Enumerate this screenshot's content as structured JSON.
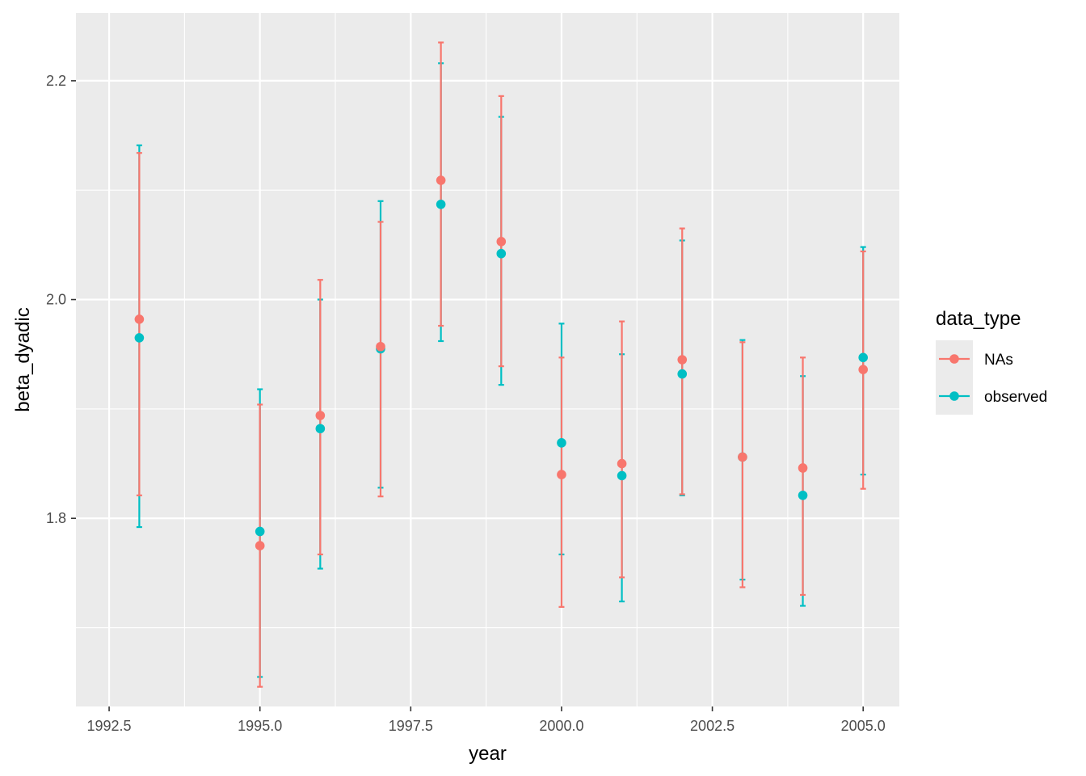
{
  "chart_data": {
    "type": "scatter",
    "title": "",
    "xlabel": "year",
    "ylabel": "beta_dyadic",
    "xlim": [
      1991.95,
      2005.6
    ],
    "ylim": [
      1.628,
      2.262
    ],
    "x_ticks": [
      1992.5,
      1995.0,
      1997.5,
      2000.0,
      2002.5,
      2005.0
    ],
    "x_tick_labels": [
      "1992.5",
      "1995.0",
      "1997.5",
      "2000.0",
      "2002.5",
      "2005.0"
    ],
    "y_ticks": [
      1.8,
      2.0,
      2.2
    ],
    "y_tick_labels": [
      "1.8",
      "2.0",
      "2.2"
    ],
    "grid": true,
    "legend": {
      "title": "data_type",
      "position": "right"
    },
    "series": [
      {
        "name": "NAs",
        "color": "#F8766D",
        "x": [
          1993,
          1995,
          1996,
          1997,
          1998,
          1999,
          2000,
          2001,
          2002,
          2003,
          2004,
          2005
        ],
        "y": [
          1.982,
          1.775,
          1.894,
          1.957,
          2.109,
          2.053,
          1.84,
          1.85,
          1.945,
          1.856,
          1.846,
          1.936
        ],
        "ymin": [
          1.821,
          1.646,
          1.767,
          1.82,
          1.976,
          1.939,
          1.719,
          1.746,
          1.822,
          1.737,
          1.73,
          1.827
        ],
        "ymax": [
          2.134,
          1.904,
          2.018,
          2.071,
          2.235,
          2.186,
          1.947,
          1.98,
          2.065,
          1.961,
          1.947,
          2.044
        ]
      },
      {
        "name": "observed",
        "color": "#00BFC4",
        "x": [
          1993,
          1995,
          1996,
          1997,
          1998,
          1999,
          2000,
          2001,
          2002,
          2003,
          2004,
          2005
        ],
        "y": [
          1.965,
          1.788,
          1.882,
          1.955,
          2.087,
          2.042,
          1.869,
          1.839,
          1.932,
          1.856,
          1.821,
          1.947
        ],
        "ymin": [
          1.792,
          1.655,
          1.754,
          1.828,
          1.962,
          1.922,
          1.767,
          1.724,
          1.821,
          1.744,
          1.72,
          1.84
        ],
        "ymax": [
          2.141,
          1.918,
          2.0,
          2.09,
          2.216,
          2.167,
          1.978,
          1.95,
          2.054,
          1.963,
          1.93,
          2.048
        ]
      }
    ]
  }
}
